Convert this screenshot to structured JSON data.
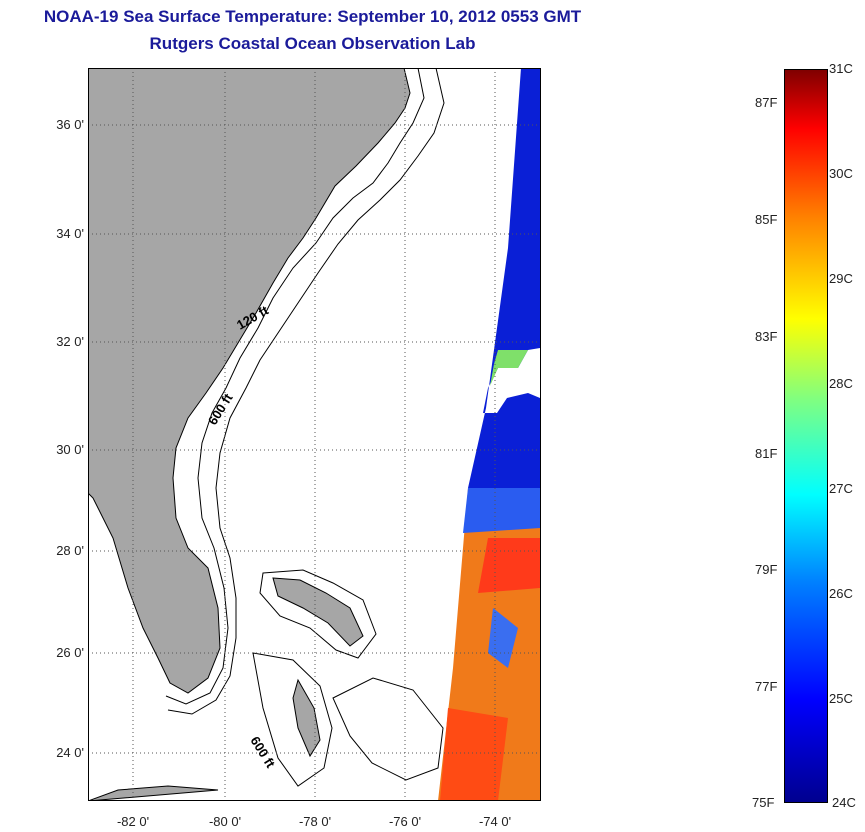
{
  "title": {
    "line1": "NOAA-19 Sea Surface Temperature:  September 10, 2012 0553 GMT",
    "line2": "Rutgers Coastal Ocean Observation Lab"
  },
  "colors": {
    "title": "#1b1b9a",
    "land": "#a6a6a6",
    "no_data": "#ffffff",
    "contour": "#000000"
  },
  "map": {
    "lat_range": [
      23,
      37.1
    ],
    "lon_range": [
      -83,
      -73
    ],
    "grid": "dotted",
    "lat_ticks": [
      {
        "value": 24,
        "label": "24 0'"
      },
      {
        "value": 26,
        "label": "26 0'"
      },
      {
        "value": 28,
        "label": "28 0'"
      },
      {
        "value": 30,
        "label": "30 0'"
      },
      {
        "value": 32,
        "label": "32 0'"
      },
      {
        "value": 34,
        "label": "34 0'"
      },
      {
        "value": 36,
        "label": "36 0'"
      }
    ],
    "lon_ticks": [
      {
        "value": -82,
        "label": "-82 0'"
      },
      {
        "value": -80,
        "label": "-80 0'"
      },
      {
        "value": -78,
        "label": "-78 0'"
      },
      {
        "value": -76,
        "label": "-76 0'"
      },
      {
        "value": -74,
        "label": "-74 0'"
      }
    ],
    "contour_labels": {
      "c120": "120 ft",
      "c600a": "600 ft",
      "c600b": "600 ft"
    }
  },
  "colorbar": {
    "celsius_range": [
      24,
      31
    ],
    "celsius_labels": [
      "24C",
      "25C",
      "26C",
      "27C",
      "28C",
      "29C",
      "30C",
      "31C"
    ],
    "fahrenheit_labels": [
      "75F",
      "77F",
      "79F",
      "81F",
      "83F",
      "85F",
      "87F"
    ]
  }
}
